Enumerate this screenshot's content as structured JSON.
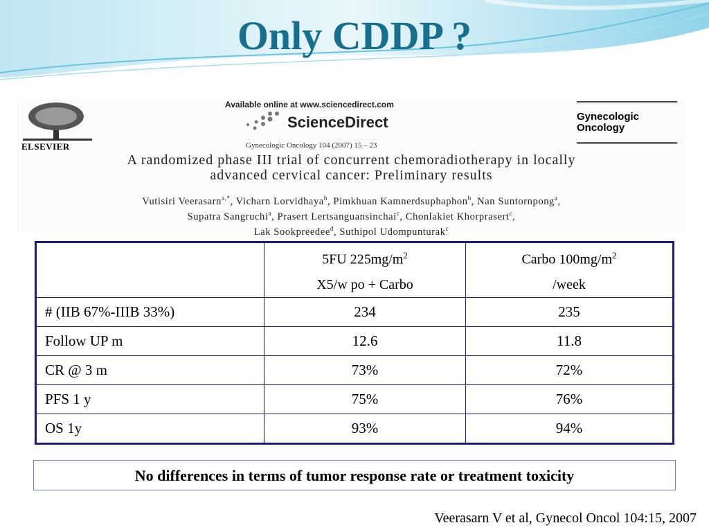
{
  "title": "Only CDDP ?",
  "paper": {
    "available": "Available online at www.sciencedirect.com",
    "brand": "ScienceDirect",
    "publisher": "ELSEVIER",
    "citation_line": "Gynecologic Oncology 104 (2007) 15 – 23",
    "journal": [
      "Gynecologic",
      "Oncology"
    ],
    "article_title": [
      "A randomized phase III trial of concurrent chemoradiotherapy in locally",
      "advanced cervical cancer: Preliminary results"
    ],
    "author_lines": [
      [
        {
          "text": "Vutisiri Veerasarn",
          "sup": "a,*"
        },
        {
          "text": ", Vicharn Lorvidhaya",
          "sup": "b"
        },
        {
          "text": ", Pimkhuan Kamnerdsuphaphon",
          "sup": "b"
        },
        {
          "text": ", Nan Suntornpong",
          "sup": "a"
        },
        {
          "text": ","
        }
      ],
      [
        {
          "text": "Supatra Sangruchi",
          "sup": "a"
        },
        {
          "text": ", Prasert Lertsanguansinchai",
          "sup": "c"
        },
        {
          "text": ", Chonlakiet Khorprasert",
          "sup": "c"
        },
        {
          "text": ","
        }
      ],
      [
        {
          "text": "Lak Sookpreedee",
          "sup": "d"
        },
        {
          "text": ", Suthipol Udompunturak",
          "sup": "c"
        }
      ]
    ]
  },
  "table": {
    "headers": [
      {
        "line1": "5FU 225mg/m",
        "sup": "2",
        "line2": "X5/w po + Carbo"
      },
      {
        "line1": "Carbo 100mg/m",
        "sup": "2",
        "line2": "/week"
      }
    ],
    "rows": [
      [
        "# (IIB 67%-IIIB 33%)",
        "234",
        "235"
      ],
      [
        "Follow UP m",
        "12.6",
        "11.8"
      ],
      [
        "CR @ 3 m",
        "73%",
        "72%"
      ],
      [
        "PFS 1 y",
        "75%",
        "76%"
      ],
      [
        "OS 1y",
        "93%",
        "94%"
      ]
    ]
  },
  "conclusion": "No differences in terms of tumor response rate or treatment toxicity",
  "reference": "Veerasarn V et al, Gynecol Oncol 104:15, 2007"
}
